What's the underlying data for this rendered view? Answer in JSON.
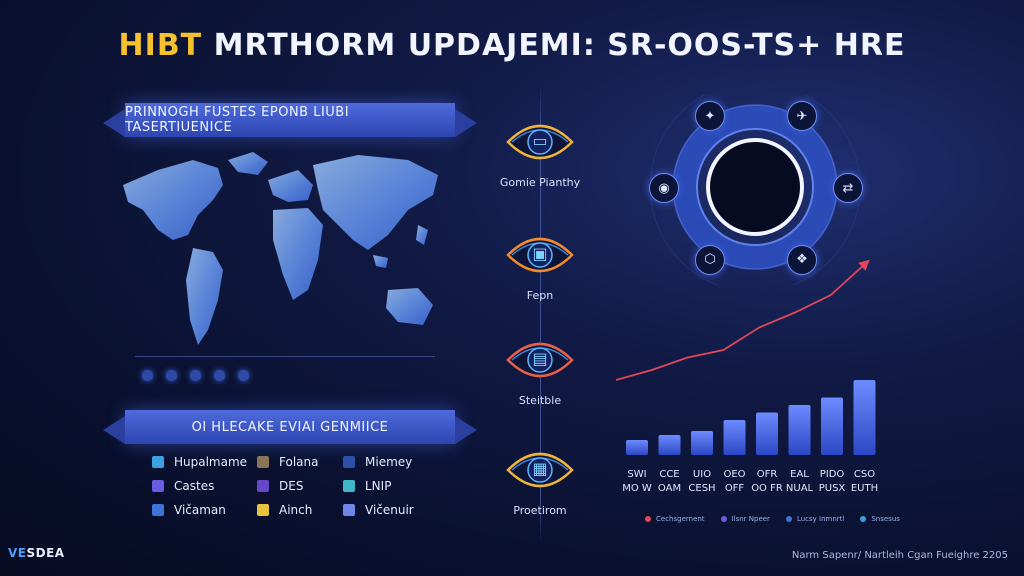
{
  "title": {
    "part1": "HIBT",
    "part2": "MRTHORM UPDAJEMI: SR-OOS-TS+ HRE"
  },
  "left": {
    "banner_top": "PRINNOGH FUSTES EPONB LIUBI TASERTIUENICE",
    "banner_bottom": "OI HLECAKE EVIAI GENMIICE",
    "legend": [
      {
        "label": "Hupalmame",
        "color": "#3aa0e0"
      },
      {
        "label": "Folana",
        "color": "#8a7458"
      },
      {
        "label": "Miemey",
        "color": "#2c4fa8"
      },
      {
        "label": "Castes",
        "color": "#6a5be0"
      },
      {
        "label": "DES",
        "color": "#6846c8"
      },
      {
        "label": "LNIP",
        "color": "#3fb7c8"
      },
      {
        "label": "Vičaman",
        "color": "#3d74d8"
      },
      {
        "label": "Ainch",
        "color": "#e8c23e"
      },
      {
        "label": "Vičenuir",
        "color": "#6f86e6"
      }
    ]
  },
  "flow": {
    "nodes": [
      {
        "label": "Gomie Pianthy",
        "icon": "laptop-icon",
        "color": "#f0b33a"
      },
      {
        "label": "Fepn",
        "icon": "chip-icon",
        "color": "#f28a2e"
      },
      {
        "label": "Steitble",
        "icon": "monitor-icon",
        "color": "#e85f4a"
      },
      {
        "label": "Proetirom",
        "icon": "phone-icon",
        "color": "#f0b33a"
      }
    ]
  },
  "ring": {
    "icons": [
      "network-icon",
      "plane-icon",
      "share-icon",
      "nodes-icon",
      "link-icon",
      "globe-icon"
    ]
  },
  "chart_data": {
    "type": "bar",
    "categories": [
      "SWI MO W",
      "CCE OAM",
      "UIO CESH",
      "OEO OFF",
      "OFR OO FR",
      "EAL NUAL",
      "PIDO PUSX",
      "CSO EUTH"
    ],
    "series": [
      {
        "values": [
          30,
          40,
          48,
          70,
          85,
          100,
          115,
          150
        ]
      }
    ],
    "trend": [
      150,
      170,
      195,
      210,
      255,
      285,
      320,
      385
    ],
    "ylim": [
      0,
      400
    ],
    "legend": [
      {
        "label": "Cechsgernent",
        "color": "#e0475a"
      },
      {
        "label": "Ilsnr Npeer",
        "color": "#6a5be0"
      },
      {
        "label": "Lucsy Inmnrtl",
        "color": "#3d74d8"
      },
      {
        "label": "Snsesus",
        "color": "#3aa0e0"
      }
    ]
  },
  "footer": {
    "logo_a": "VE",
    "logo_b": "SDEA",
    "credit": "Narm Sapenr/ Nartleih Cgan Fueighre 2205"
  }
}
